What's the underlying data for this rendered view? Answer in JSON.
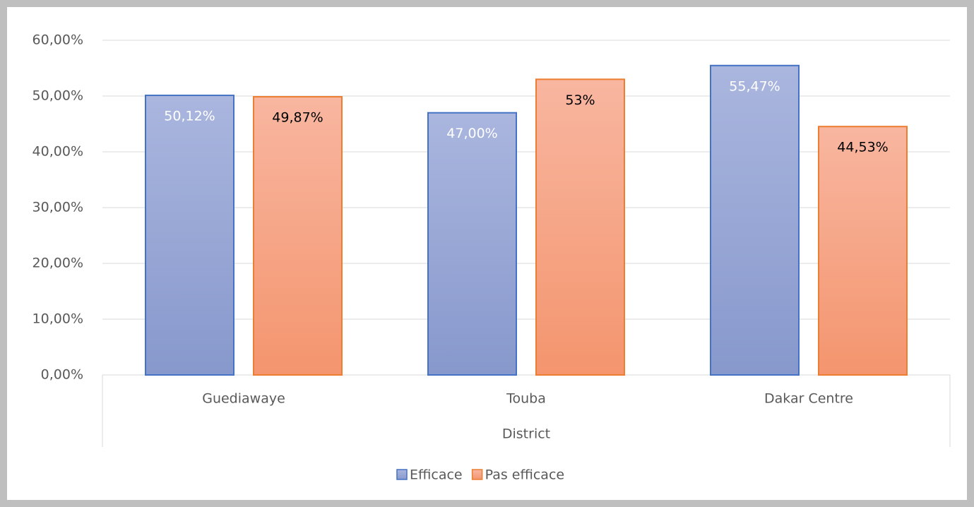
{
  "chart_data": {
    "type": "bar",
    "categories": [
      "Guediawaye",
      "Touba",
      "Dakar Centre"
    ],
    "x_label": "District",
    "series": [
      {
        "name": "Efficace",
        "color": "#4472c4",
        "values": [
          50.12,
          47.0,
          55.47
        ],
        "value_labels": [
          "50,12%",
          "47,00%",
          "55,47%"
        ]
      },
      {
        "name": "Pas efficace",
        "color": "#ed7d31",
        "values": [
          49.87,
          53,
          44.53
        ],
        "value_labels": [
          "49,87%",
          "53%",
          "44,53%"
        ]
      }
    ],
    "ylim": [
      0,
      60
    ],
    "yticks": [
      {
        "value": 0,
        "label": "0,00%"
      },
      {
        "value": 10,
        "label": "10,00%"
      },
      {
        "value": 20,
        "label": "20,00%"
      },
      {
        "value": 30,
        "label": "30,00%"
      },
      {
        "value": 40,
        "label": "40,00%"
      },
      {
        "value": 50,
        "label": "50,00%"
      },
      {
        "value": 60,
        "label": "60,00%"
      }
    ],
    "grid": true,
    "legend": "bottom"
  }
}
